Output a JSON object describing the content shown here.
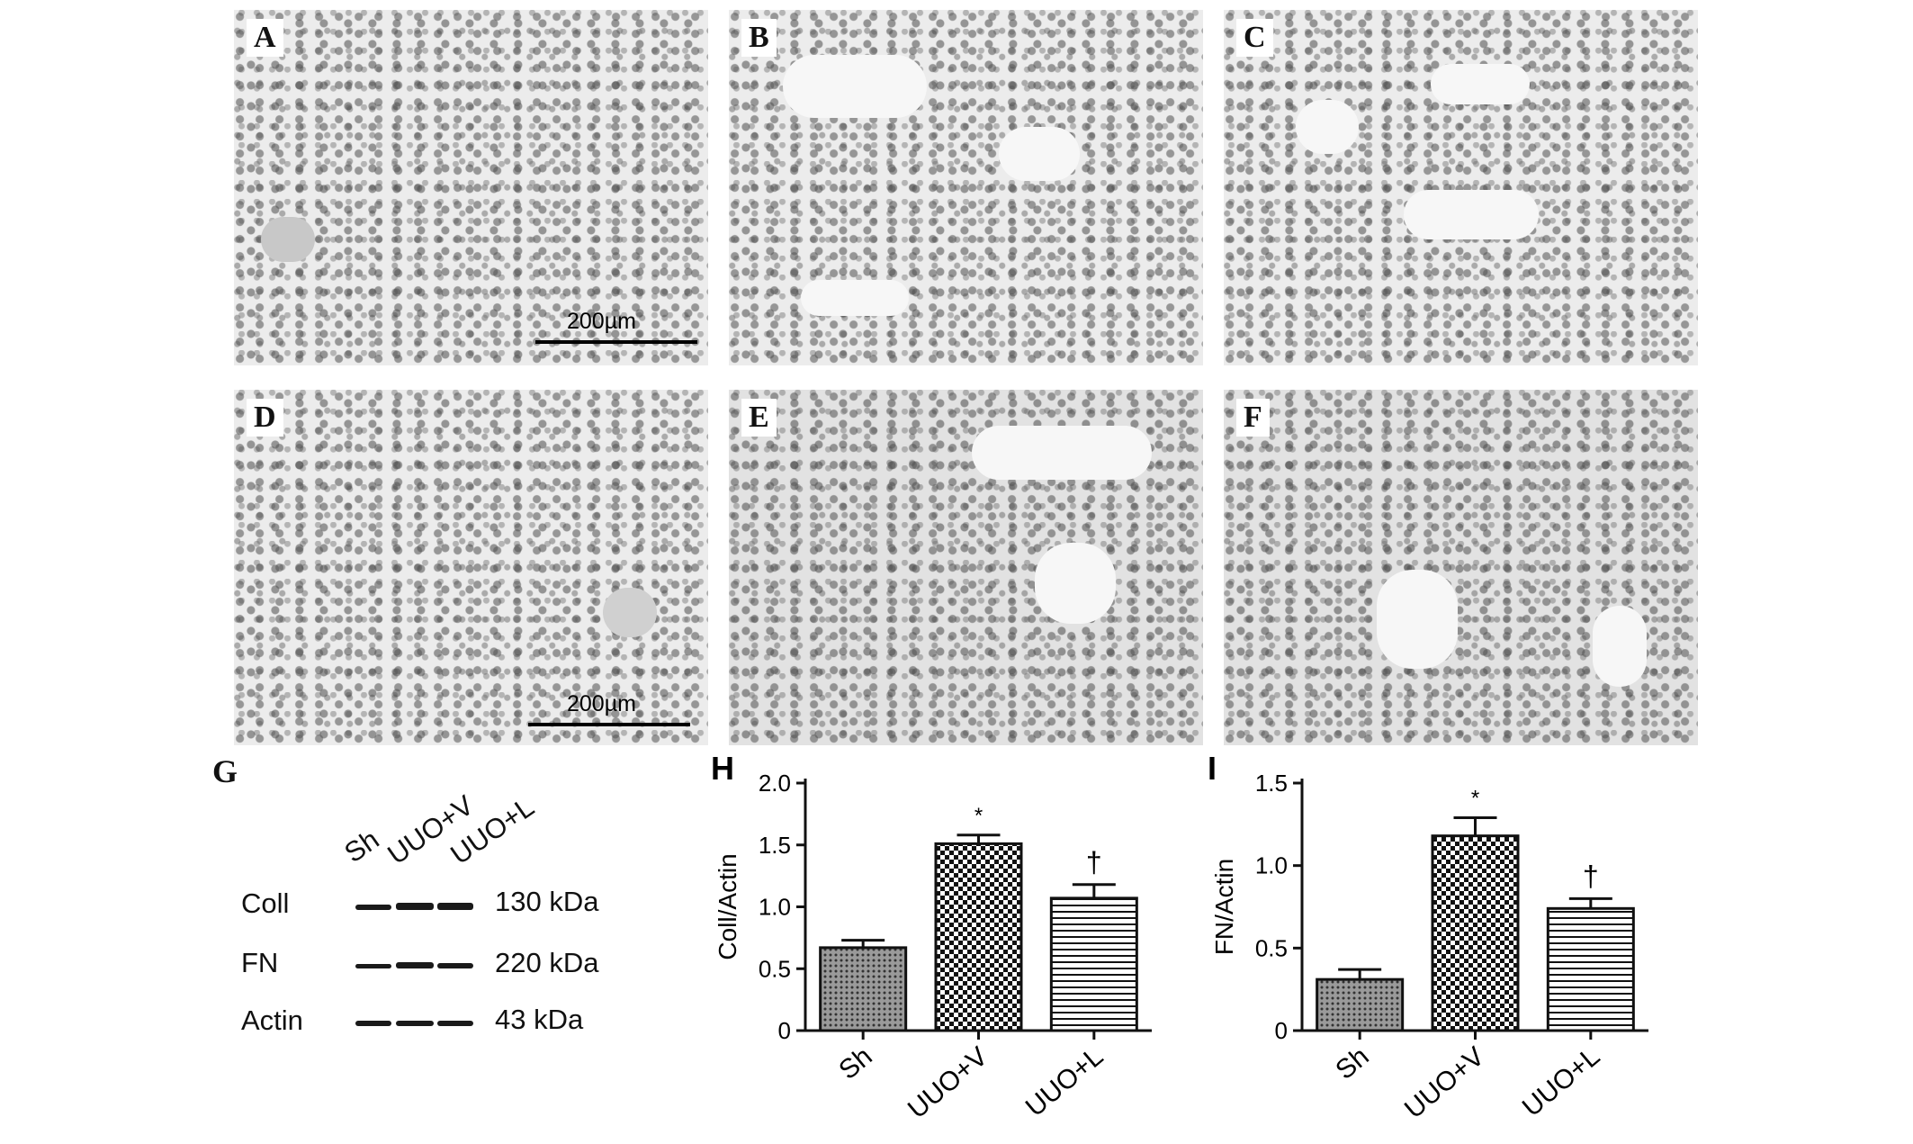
{
  "micrographs": [
    {
      "letter": "A",
      "scale_label": "200µm"
    },
    {
      "letter": "B"
    },
    {
      "letter": "C"
    },
    {
      "letter": "D",
      "scale_label": "200µm"
    },
    {
      "letter": "E"
    },
    {
      "letter": "F"
    }
  ],
  "western_blot": {
    "letter": "G",
    "lanes": [
      "Sh",
      "UUO+V",
      "UUO+L"
    ],
    "rows": [
      {
        "protein": "Coll",
        "size": "130",
        "unit": "kDa"
      },
      {
        "protein": "FN",
        "size": "220",
        "unit": "kDa"
      },
      {
        "protein": "Actin",
        "size": "43",
        "unit": "kDa"
      }
    ]
  },
  "chart_data": [
    {
      "panel": "H",
      "type": "bar",
      "categories": [
        "Sh",
        "UUO+V",
        "UUO+L"
      ],
      "values": [
        0.67,
        1.51,
        1.07
      ],
      "errors": [
        0.06,
        0.07,
        0.11
      ],
      "annotations": [
        "",
        "*",
        "†"
      ],
      "ylabel": "Coll/Actin",
      "ylim": [
        0,
        2.0
      ],
      "yticks": [
        "0",
        "0.5",
        "1.0",
        "1.5",
        "2.0"
      ],
      "patterns": [
        "dots",
        "checker",
        "hlines"
      ]
    },
    {
      "panel": "I",
      "type": "bar",
      "categories": [
        "Sh",
        "UUO+V",
        "UUO+L"
      ],
      "values": [
        0.31,
        1.18,
        0.74
      ],
      "errors": [
        0.06,
        0.11,
        0.06
      ],
      "annotations": [
        "",
        "*",
        "†"
      ],
      "ylabel": "FN/Actin",
      "ylim": [
        0,
        1.5
      ],
      "yticks": [
        "0",
        "0.5",
        "1.0",
        "1.5"
      ],
      "patterns": [
        "dots",
        "checker",
        "hlines"
      ]
    }
  ]
}
